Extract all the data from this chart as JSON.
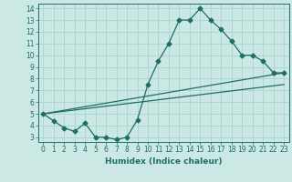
{
  "title": "",
  "xlabel": "Humidex (Indice chaleur)",
  "bg_color": "#cce8e4",
  "line_color": "#1e6e66",
  "grid_color": "#a8d5cf",
  "xlim": [
    -0.5,
    23.5
  ],
  "ylim": [
    2.6,
    14.4
  ],
  "xticks": [
    0,
    1,
    2,
    3,
    4,
    5,
    6,
    7,
    8,
    9,
    10,
    11,
    12,
    13,
    14,
    15,
    16,
    17,
    18,
    19,
    20,
    21,
    22,
    23
  ],
  "yticks": [
    3,
    4,
    5,
    6,
    7,
    8,
    9,
    10,
    11,
    12,
    13,
    14
  ],
  "curve1_x": [
    0,
    1,
    2,
    3,
    4,
    5,
    6,
    7,
    8,
    9,
    10,
    11,
    12,
    13,
    14,
    15,
    16,
    17,
    18,
    19,
    20,
    21,
    22,
    23
  ],
  "curve1_y": [
    5.0,
    4.4,
    3.8,
    3.5,
    4.2,
    3.0,
    3.0,
    2.8,
    3.0,
    4.5,
    7.5,
    9.5,
    11.0,
    13.0,
    13.0,
    14.0,
    13.0,
    12.2,
    11.2,
    10.0,
    10.0,
    9.5,
    8.5,
    8.5
  ],
  "curve2_x": [
    0,
    23
  ],
  "curve2_y": [
    5.0,
    8.5
  ],
  "curve3_x": [
    0,
    23
  ],
  "curve3_y": [
    5.0,
    7.5
  ],
  "marker": "D",
  "markersize": 2.5,
  "xlabel_fontsize": 6.5,
  "tick_fontsize": 5.5
}
